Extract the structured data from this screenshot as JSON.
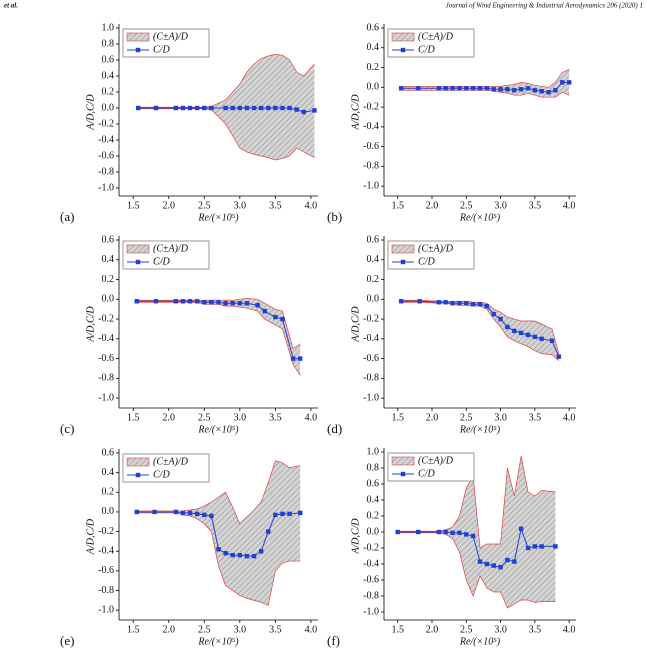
{
  "header": {
    "left": "et al.",
    "right": "Journal of Wind Engineering & Industrial Aerodynamics 206 (2020) 1"
  },
  "chart_data": [
    {
      "type": "band_line",
      "panel": "(a)",
      "xlabel": "Re/(×10⁵)",
      "ylabel": "A/D,C/D",
      "legend": "upper left",
      "xlim": [
        1.3,
        4.1
      ],
      "ylim": [
        -1.1,
        1.0
      ],
      "xticks": [
        1.5,
        {
          "value": 2,
          "label": "2.0"
        },
        2.5,
        {
          "value": 3,
          "label": "3.0"
        },
        3.5,
        {
          "value": 4,
          "label": "4.0"
        }
      ],
      "yticks": [
        {
          "value": 1,
          "label": "1.0"
        },
        0.8,
        0.6,
        0.4,
        0.2,
        {
          "value": 0,
          "label": "0.0"
        },
        -0.2,
        -0.4,
        -0.6,
        -0.8,
        {
          "value": -1,
          "label": "-1.0"
        }
      ],
      "x": [
        1.57,
        1.82,
        2.1,
        2.2,
        2.3,
        2.4,
        2.5,
        2.6,
        2.8,
        2.9,
        3.0,
        3.1,
        3.2,
        3.3,
        3.4,
        3.5,
        3.6,
        3.7,
        3.8,
        3.9,
        4.05
      ],
      "series": [
        {
          "name": "(C±A)/D",
          "color": "#e04040",
          "upper": [
            0.01,
            0.01,
            0.01,
            0.01,
            0.01,
            0.01,
            0.01,
            0.02,
            0.1,
            0.2,
            0.3,
            0.45,
            0.55,
            0.62,
            0.65,
            0.67,
            0.66,
            0.6,
            0.45,
            0.4,
            0.55
          ],
          "lower": [
            -0.01,
            -0.01,
            -0.01,
            -0.01,
            -0.01,
            -0.01,
            -0.01,
            -0.02,
            -0.2,
            -0.35,
            -0.5,
            -0.55,
            -0.58,
            -0.6,
            -0.62,
            -0.65,
            -0.63,
            -0.6,
            -0.5,
            -0.55,
            -0.62
          ]
        },
        {
          "name": "C/D",
          "color": "#1f3fd6",
          "values": [
            0,
            0,
            0,
            0,
            0,
            0,
            0,
            0,
            0,
            0,
            0,
            0,
            0,
            0,
            0,
            0,
            0,
            0,
            -0.02,
            -0.05,
            -0.03
          ]
        }
      ]
    },
    {
      "type": "band_line",
      "panel": "(b)",
      "xlabel": "Re/(×10⁵)",
      "ylabel": "A/D,C/D",
      "legend": "upper left",
      "xlim": [
        1.3,
        4.1
      ],
      "ylim": [
        -1.1,
        0.6
      ],
      "xticks": [
        1.5,
        {
          "value": 2,
          "label": "2.0"
        },
        2.5,
        {
          "value": 3,
          "label": "3.0"
        },
        3.5,
        {
          "value": 4,
          "label": "4.0"
        }
      ],
      "yticks": [
        0.6,
        0.4,
        0.2,
        {
          "value": 0,
          "label": "0.0"
        },
        -0.2,
        -0.4,
        -0.6,
        -0.8,
        {
          "value": -1,
          "label": "-1.0"
        }
      ],
      "x": [
        1.55,
        1.8,
        2.1,
        2.2,
        2.3,
        2.4,
        2.5,
        2.6,
        2.7,
        2.8,
        2.9,
        3.0,
        3.1,
        3.2,
        3.3,
        3.4,
        3.5,
        3.6,
        3.7,
        3.8,
        3.9,
        4.0
      ],
      "series": [
        {
          "name": "(C±A)/D",
          "color": "#e04040",
          "upper": [
            0.01,
            0.01,
            0.01,
            0.01,
            0.01,
            0.01,
            0.01,
            0.01,
            0.01,
            0.01,
            0.01,
            0.01,
            0.02,
            0.03,
            0.05,
            0.04,
            0.02,
            0.01,
            0,
            0.05,
            0.15,
            0.18
          ],
          "lower": [
            -0.03,
            -0.03,
            -0.03,
            -0.03,
            -0.03,
            -0.03,
            -0.03,
            -0.03,
            -0.03,
            -0.03,
            -0.04,
            -0.05,
            -0.06,
            -0.08,
            -0.08,
            -0.06,
            -0.08,
            -0.1,
            -0.1,
            -0.1,
            -0.05,
            -0.08
          ]
        },
        {
          "name": "C/D",
          "color": "#1f3fd6",
          "values": [
            -0.01,
            -0.01,
            -0.01,
            -0.01,
            -0.01,
            -0.01,
            -0.01,
            -0.01,
            -0.01,
            -0.01,
            -0.02,
            -0.02,
            -0.02,
            -0.03,
            -0.02,
            -0.01,
            -0.03,
            -0.04,
            -0.05,
            -0.03,
            0.05,
            0.05
          ]
        }
      ]
    },
    {
      "type": "band_line",
      "panel": "(c)",
      "xlabel": "Re/(×10⁵)",
      "ylabel": "A/D,C/D",
      "legend": "upper left",
      "xlim": [
        1.3,
        4.1
      ],
      "ylim": [
        -1.1,
        0.6
      ],
      "xticks": [
        1.5,
        {
          "value": 2,
          "label": "2.0"
        },
        2.5,
        {
          "value": 3,
          "label": "3.0"
        },
        3.5,
        {
          "value": 4,
          "label": "4.0"
        }
      ],
      "yticks": [
        0.6,
        0.4,
        0.2,
        {
          "value": 0,
          "label": "0.0"
        },
        -0.2,
        -0.4,
        -0.6,
        -0.8,
        {
          "value": -1,
          "label": "-1.0"
        }
      ],
      "x": [
        1.55,
        1.82,
        2.1,
        2.2,
        2.3,
        2.4,
        2.5,
        2.6,
        2.7,
        2.8,
        2.9,
        3.0,
        3.1,
        3.25,
        3.35,
        3.5,
        3.6,
        3.75,
        3.85
      ],
      "series": [
        {
          "name": "(C±A)/D",
          "color": "#e04040",
          "upper": [
            -0.01,
            -0.01,
            -0.01,
            -0.01,
            -0.01,
            -0.01,
            -0.01,
            -0.01,
            -0.01,
            -0.01,
            -0.01,
            0,
            0.01,
            0,
            -0.04,
            -0.1,
            -0.12,
            -0.5,
            -0.45
          ],
          "lower": [
            -0.03,
            -0.03,
            -0.03,
            -0.03,
            -0.03,
            -0.03,
            -0.05,
            -0.05,
            -0.05,
            -0.07,
            -0.07,
            -0.08,
            -0.09,
            -0.12,
            -0.2,
            -0.26,
            -0.3,
            -0.66,
            -0.77
          ]
        },
        {
          "name": "C/D",
          "color": "#1f3fd6",
          "values": [
            -0.02,
            -0.02,
            -0.02,
            -0.02,
            -0.02,
            -0.02,
            -0.03,
            -0.03,
            -0.03,
            -0.04,
            -0.04,
            -0.04,
            -0.04,
            -0.06,
            -0.12,
            -0.18,
            -0.2,
            -0.6,
            -0.6
          ]
        }
      ]
    },
    {
      "type": "band_line",
      "panel": "(d)",
      "xlabel": "Re/(×10⁵)",
      "ylabel": "A/D,C/D",
      "legend": "upper left",
      "xlim": [
        1.3,
        4.1
      ],
      "ylim": [
        -1.1,
        0.6
      ],
      "xticks": [
        1.5,
        {
          "value": 2,
          "label": "2.0"
        },
        2.5,
        {
          "value": 3,
          "label": "3.0"
        },
        3.5,
        {
          "value": 4,
          "label": "4.0"
        }
      ],
      "yticks": [
        0.6,
        0.4,
        0.2,
        {
          "value": 0,
          "label": "0.0"
        },
        -0.2,
        -0.4,
        -0.6,
        -0.8,
        {
          "value": -1,
          "label": "-1.0"
        }
      ],
      "x": [
        1.55,
        1.82,
        2.1,
        2.2,
        2.3,
        2.4,
        2.5,
        2.6,
        2.7,
        2.8,
        2.9,
        3.0,
        3.1,
        3.2,
        3.3,
        3.4,
        3.5,
        3.6,
        3.75,
        3.85
      ],
      "series": [
        {
          "name": "(C±A)/D",
          "color": "#e04040",
          "upper": [
            -0.01,
            -0.01,
            -0.02,
            -0.02,
            -0.02,
            -0.02,
            -0.02,
            -0.03,
            -0.03,
            -0.04,
            -0.1,
            -0.13,
            -0.18,
            -0.2,
            -0.22,
            -0.22,
            -0.22,
            -0.25,
            -0.3,
            -0.55
          ],
          "lower": [
            -0.03,
            -0.03,
            -0.04,
            -0.04,
            -0.05,
            -0.06,
            -0.06,
            -0.07,
            -0.07,
            -0.1,
            -0.2,
            -0.28,
            -0.38,
            -0.42,
            -0.45,
            -0.48,
            -0.52,
            -0.55,
            -0.56,
            -0.62
          ]
        },
        {
          "name": "C/D",
          "color": "#1f3fd6",
          "values": [
            -0.02,
            -0.02,
            -0.03,
            -0.03,
            -0.04,
            -0.04,
            -0.04,
            -0.05,
            -0.05,
            -0.07,
            -0.15,
            -0.2,
            -0.28,
            -0.32,
            -0.34,
            -0.36,
            -0.38,
            -0.4,
            -0.42,
            -0.58
          ]
        }
      ]
    },
    {
      "type": "band_line",
      "panel": "(e)",
      "xlabel": "Re/(×10⁵)",
      "ylabel": "A/D,C/D",
      "legend": "upper left",
      "xlim": [
        1.3,
        4.1
      ],
      "ylim": [
        -1.1,
        0.6
      ],
      "xticks": [
        1.5,
        {
          "value": 2,
          "label": "2.0"
        },
        2.5,
        {
          "value": 3,
          "label": "3.0"
        },
        3.5,
        {
          "value": 4,
          "label": "4.0"
        }
      ],
      "yticks": [
        0.6,
        0.4,
        0.2,
        {
          "value": 0,
          "label": "0.0"
        },
        -0.2,
        -0.4,
        -0.6,
        -0.8,
        {
          "value": -1,
          "label": "-1.0"
        }
      ],
      "x": [
        1.55,
        1.8,
        2.1,
        2.2,
        2.3,
        2.4,
        2.5,
        2.6,
        2.7,
        2.8,
        2.9,
        3.0,
        3.1,
        3.2,
        3.3,
        3.4,
        3.5,
        3.6,
        3.7,
        3.85
      ],
      "series": [
        {
          "name": "(C±A)/D",
          "color": "#e04040",
          "upper": [
            0.01,
            0.01,
            0.01,
            0.01,
            0.02,
            0.03,
            0.06,
            0.1,
            0.15,
            0.2,
            0.05,
            -0.12,
            -0.05,
            0.02,
            0.1,
            0.3,
            0.52,
            0.5,
            0.45,
            0.47
          ],
          "lower": [
            -0.01,
            -0.01,
            -0.01,
            -0.03,
            -0.04,
            -0.07,
            -0.12,
            -0.2,
            -0.55,
            -0.75,
            -0.8,
            -0.85,
            -0.88,
            -0.9,
            -0.92,
            -0.95,
            -0.6,
            -0.52,
            -0.5,
            -0.5
          ]
        },
        {
          "name": "C/D",
          "color": "#1f3fd6",
          "values": [
            0,
            0,
            0,
            -0.01,
            -0.01,
            -0.02,
            -0.03,
            -0.04,
            -0.38,
            -0.42,
            -0.44,
            -0.44,
            -0.45,
            -0.45,
            -0.4,
            -0.2,
            -0.03,
            -0.02,
            -0.02,
            -0.01
          ]
        }
      ]
    },
    {
      "type": "band_line",
      "panel": "(f)",
      "xlabel": "Re/(×10⁵)",
      "ylabel": "A/D,C/D",
      "legend": "upper left",
      "xlim": [
        1.3,
        4.1
      ],
      "ylim": [
        -1.1,
        1.0
      ],
      "xticks": [
        1.5,
        {
          "value": 2,
          "label": "2.0"
        },
        2.5,
        {
          "value": 3,
          "label": "3.0"
        },
        3.5,
        {
          "value": 4,
          "label": "4.0"
        }
      ],
      "yticks": [
        {
          "value": 1,
          "label": "1.0"
        },
        0.8,
        0.6,
        0.4,
        0.2,
        {
          "value": 0,
          "label": "0.0"
        },
        -0.2,
        -0.4,
        -0.6,
        -0.8,
        {
          "value": -1,
          "label": "-1.0"
        }
      ],
      "x": [
        1.5,
        1.8,
        2.1,
        2.2,
        2.3,
        2.4,
        2.5,
        2.6,
        2.7,
        2.8,
        2.9,
        3.0,
        3.1,
        3.2,
        3.3,
        3.4,
        3.5,
        3.6,
        3.8
      ],
      "series": [
        {
          "name": "(C±A)/D",
          "color": "#e04040",
          "upper": [
            0.01,
            0.01,
            0.01,
            0.03,
            0.06,
            0.2,
            0.55,
            0.7,
            -0.2,
            -0.15,
            -0.15,
            -0.15,
            0.8,
            0.45,
            0.95,
            0.5,
            0.45,
            0.52,
            0.5
          ],
          "lower": [
            -0.01,
            -0.01,
            -0.01,
            -0.03,
            -0.08,
            -0.25,
            -0.6,
            -0.8,
            -0.55,
            -0.7,
            -0.75,
            -0.75,
            -0.95,
            -0.9,
            -0.85,
            -0.85,
            -0.88,
            -0.87,
            -0.87
          ]
        },
        {
          "name": "C/D",
          "color": "#1f3fd6",
          "values": [
            0,
            0,
            0,
            0,
            -0.01,
            -0.01,
            -0.03,
            -0.05,
            -0.37,
            -0.4,
            -0.42,
            -0.44,
            -0.35,
            -0.37,
            0.04,
            -0.2,
            -0.18,
            -0.18,
            -0.18
          ]
        }
      ]
    }
  ]
}
